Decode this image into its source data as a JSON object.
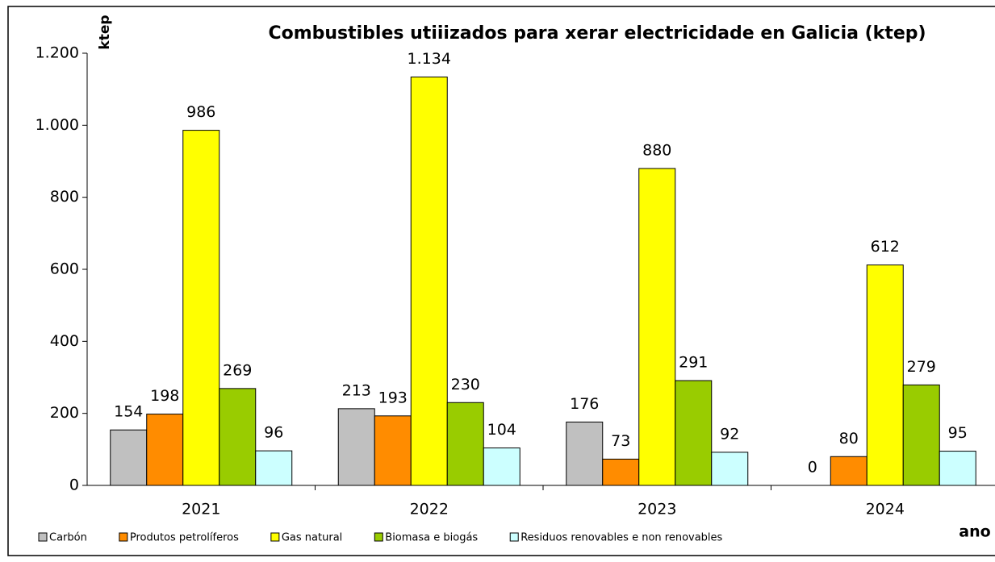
{
  "chart_data": {
    "type": "bar",
    "title": "Combustibles utiiizados para xerar electricidade  en Galicia (ktep)",
    "y_label": "ktep",
    "x_label": "ano",
    "categories": [
      "2021",
      "2022",
      "2023",
      "2024"
    ],
    "series": [
      {
        "name": "Carbón",
        "color": "#c0c0c0",
        "values": [
          154,
          213,
          176,
          0
        ]
      },
      {
        "name": "Produtos petrolíferos",
        "color": "#ff8c00",
        "values": [
          198,
          193,
          73,
          80
        ]
      },
      {
        "name": "Gas natural",
        "color": "#ffff00",
        "values": [
          986,
          1134,
          880,
          612
        ],
        "value_labels": [
          "986",
          "1.134",
          "880",
          "612"
        ]
      },
      {
        "name": "Biomasa e biogás",
        "color": "#99cc00",
        "values": [
          269,
          230,
          291,
          279
        ]
      },
      {
        "name": "Residuos renovables e non renovables",
        "color": "#ccffff",
        "values": [
          96,
          104,
          92,
          95
        ]
      }
    ],
    "ylim": [
      0,
      1200
    ],
    "yticks": [
      0,
      200,
      400,
      600,
      800,
      {
        "value": 1000,
        "label": "1.000"
      },
      {
        "value": 1200,
        "label": "1.200"
      }
    ],
    "grid": false
  }
}
